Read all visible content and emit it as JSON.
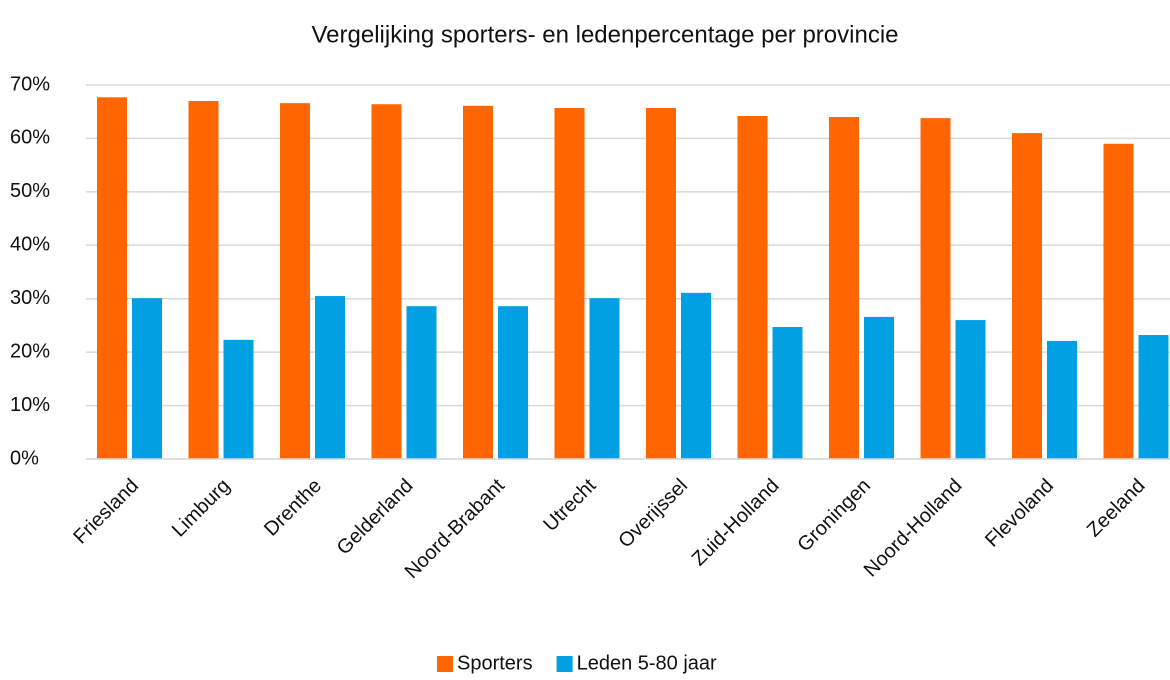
{
  "chart_data": {
    "type": "bar",
    "title": "Vergelijking sporters- en ledenpercentage per provincie",
    "categories": [
      "Friesland",
      "Limburg",
      "Drenthe",
      "Gelderland",
      "Noord-Brabant",
      "Utrecht",
      "Overijssel",
      "Zuid-Holland",
      "Groningen",
      "Noord-Holland",
      "Flevoland",
      "Zeeland"
    ],
    "series": [
      {
        "name": "Sporters",
        "color": "#ff6600",
        "values": [
          67.7,
          67.0,
          66.6,
          66.4,
          66.1,
          65.7,
          65.7,
          64.2,
          64.0,
          63.8,
          61.0,
          59.0
        ]
      },
      {
        "name": "Leden 5-80 jaar",
        "color": "#00a0e2",
        "values": [
          30.1,
          22.3,
          30.5,
          28.6,
          28.6,
          30.1,
          31.1,
          24.7,
          26.6,
          26.0,
          22.1,
          23.2
        ]
      }
    ],
    "ylim": [
      0,
      70
    ],
    "yticks": [
      {
        "value": 0,
        "label": "0%"
      },
      {
        "value": 10,
        "label": "10%"
      },
      {
        "value": 20,
        "label": "20%"
      },
      {
        "value": 30,
        "label": "30%"
      },
      {
        "value": 40,
        "label": "40%"
      },
      {
        "value": 50,
        "label": "50%"
      },
      {
        "value": 60,
        "label": "60%"
      },
      {
        "value": 70,
        "label": "70%"
      }
    ],
    "grid": true,
    "legend": "bottom"
  }
}
